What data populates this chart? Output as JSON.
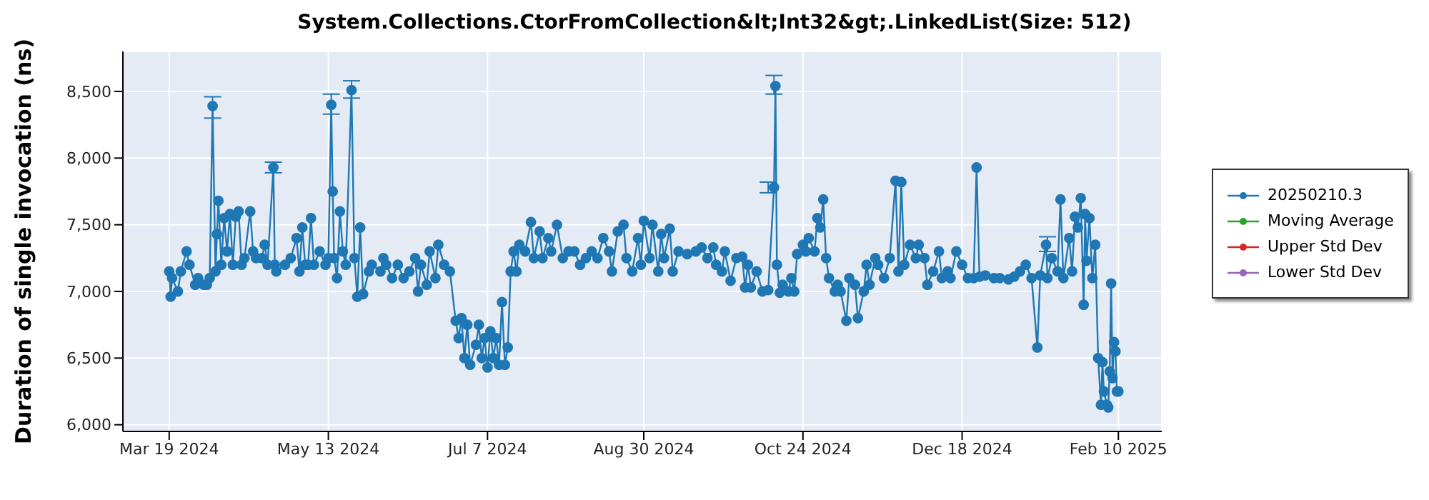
{
  "chart_data": {
    "type": "line",
    "title": "System.Collections.CtorFromCollection&lt;Int32&gt;.LinkedList(Size: 512)",
    "ylabel": "Duration of single invocation (ns)",
    "xlim": [
      "2024-03-03",
      "2025-02-25"
    ],
    "xticks": [
      {
        "value": "2024-03-19",
        "label": "Mar 19 2024"
      },
      {
        "value": "2024-05-13",
        "label": "May 13 2024"
      },
      {
        "value": "2024-07-07",
        "label": "Jul 7 2024"
      },
      {
        "value": "2024-08-30",
        "label": "Aug 30 2024"
      },
      {
        "value": "2024-10-24",
        "label": "Oct 24 2024"
      },
      {
        "value": "2024-12-18",
        "label": "Dec 18 2024"
      },
      {
        "value": "2025-02-10",
        "label": "Feb 10 2025"
      }
    ],
    "ylim": [
      5950,
      8800
    ],
    "yticks": [
      {
        "value": 6000,
        "label": "6,000"
      },
      {
        "value": 6500,
        "label": "6,500"
      },
      {
        "value": 7000,
        "label": "7,000"
      },
      {
        "value": 7500,
        "label": "7,500"
      },
      {
        "value": 8000,
        "label": "8,000"
      },
      {
        "value": 8500,
        "label": "8,500"
      }
    ],
    "grid": true,
    "legend": "right",
    "marker": "circle",
    "line_style": "solid",
    "x": [
      "2024-03-19",
      "2024-03-19T12:00",
      "2024-03-20",
      "2024-03-22",
      "2024-03-23",
      "2024-03-25",
      "2024-03-26",
      "2024-03-28",
      "2024-03-29",
      "2024-03-31",
      "2024-04-01",
      "2024-04-02",
      "2024-04-03",
      "2024-04-04",
      "2024-04-04T12:00",
      "2024-04-05",
      "2024-04-06",
      "2024-04-07",
      "2024-04-08",
      "2024-04-09",
      "2024-04-10",
      "2024-04-11",
      "2024-04-12",
      "2024-04-13",
      "2024-04-14",
      "2024-04-16",
      "2024-04-17",
      "2024-04-18",
      "2024-04-20",
      "2024-04-21",
      "2024-04-22",
      "2024-04-24",
      "2024-04-24T12:00",
      "2024-04-25",
      "2024-04-28",
      "2024-04-30",
      "2024-05-02",
      "2024-05-03",
      "2024-05-04",
      "2024-05-05",
      "2024-05-06",
      "2024-05-07",
      "2024-05-08",
      "2024-05-10",
      "2024-05-12",
      "2024-05-13",
      "2024-05-14",
      "2024-05-14T12:00",
      "2024-05-15",
      "2024-05-16",
      "2024-05-17",
      "2024-05-18",
      "2024-05-19",
      "2024-05-21",
      "2024-05-22",
      "2024-05-23",
      "2024-05-24",
      "2024-05-25",
      "2024-05-27",
      "2024-05-28",
      "2024-05-31",
      "2024-06-01",
      "2024-06-02",
      "2024-06-04",
      "2024-06-06",
      "2024-06-08",
      "2024-06-10",
      "2024-06-12",
      "2024-06-13",
      "2024-06-14",
      "2024-06-16",
      "2024-06-17",
      "2024-06-19",
      "2024-06-20",
      "2024-06-22",
      "2024-06-24",
      "2024-06-26",
      "2024-06-27",
      "2024-06-28",
      "2024-06-29",
      "2024-06-30",
      "2024-07-01",
      "2024-07-03",
      "2024-07-04",
      "2024-07-05",
      "2024-07-06",
      "2024-07-07",
      "2024-07-08",
      "2024-07-09",
      "2024-07-10",
      "2024-07-11",
      "2024-07-12",
      "2024-07-13",
      "2024-07-14",
      "2024-07-15",
      "2024-07-16",
      "2024-07-17",
      "2024-07-18",
      "2024-07-20",
      "2024-07-22",
      "2024-07-23",
      "2024-07-25",
      "2024-07-26",
      "2024-07-28",
      "2024-07-29",
      "2024-07-31",
      "2024-08-02",
      "2024-08-04",
      "2024-08-06",
      "2024-08-08",
      "2024-08-10",
      "2024-08-12",
      "2024-08-14",
      "2024-08-16",
      "2024-08-18",
      "2024-08-19",
      "2024-08-21",
      "2024-08-23",
      "2024-08-24",
      "2024-08-26",
      "2024-08-28",
      "2024-08-29",
      "2024-08-30",
      "2024-09-01",
      "2024-09-02",
      "2024-09-04",
      "2024-09-05",
      "2024-09-06",
      "2024-09-08",
      "2024-09-09",
      "2024-09-11",
      "2024-09-14",
      "2024-09-17",
      "2024-09-19",
      "2024-09-21",
      "2024-09-23",
      "2024-09-24",
      "2024-09-26",
      "2024-09-27",
      "2024-09-29",
      "2024-10-01",
      "2024-10-03",
      "2024-10-04",
      "2024-10-05",
      "2024-10-06",
      "2024-10-08",
      "2024-10-10",
      "2024-10-12",
      "2024-10-14",
      "2024-10-14T12:00",
      "2024-10-15",
      "2024-10-16",
      "2024-10-17",
      "2024-10-19",
      "2024-10-20",
      "2024-10-21",
      "2024-10-22",
      "2024-10-24",
      "2024-10-25",
      "2024-10-26",
      "2024-10-28",
      "2024-10-29",
      "2024-10-30",
      "2024-10-31",
      "2024-11-01",
      "2024-11-02",
      "2024-11-04",
      "2024-11-05",
      "2024-11-06",
      "2024-11-08",
      "2024-11-09",
      "2024-11-11",
      "2024-11-12",
      "2024-11-14",
      "2024-11-15",
      "2024-11-16",
      "2024-11-18",
      "2024-11-19",
      "2024-11-21",
      "2024-11-23",
      "2024-11-25",
      "2024-11-26",
      "2024-11-27",
      "2024-11-28",
      "2024-11-30",
      "2024-12-02",
      "2024-12-03",
      "2024-12-05",
      "2024-12-06",
      "2024-12-08",
      "2024-12-10",
      "2024-12-11",
      "2024-12-13",
      "2024-12-14",
      "2024-12-16",
      "2024-12-18",
      "2024-12-20",
      "2024-12-22",
      "2024-12-23",
      "2024-12-24",
      "2024-12-26",
      "2024-12-29",
      "2024-12-31",
      "2025-01-03",
      "2025-01-05",
      "2025-01-07",
      "2025-01-09",
      "2025-01-11",
      "2025-01-13",
      "2025-01-14",
      "2025-01-16",
      "2025-01-16T12:00",
      "2025-01-18",
      "2025-01-20",
      "2025-01-21",
      "2025-01-22",
      "2025-01-24",
      "2025-01-25",
      "2025-01-26",
      "2025-01-27",
      "2025-01-28",
      "2025-01-29",
      "2025-01-29T12:00",
      "2025-01-30",
      "2025-01-31",
      "2025-02-01",
      "2025-02-02",
      "2025-02-03",
      "2025-02-04",
      "2025-02-04T12:00",
      "2025-02-05",
      "2025-02-06",
      "2025-02-06T12:00",
      "2025-02-07",
      "2025-02-07T12:00",
      "2025-02-08",
      "2025-02-08T12:00",
      "2025-02-09",
      "2025-02-09T12:00",
      "2025-02-10"
    ],
    "series": [
      {
        "name": "20250210.3",
        "color": "#1f77b4",
        "values": [
          7150,
          6960,
          7100,
          7000,
          7150,
          7300,
          7200,
          7050,
          7100,
          7050,
          7050,
          7100,
          8390,
          7150,
          7430,
          7680,
          7200,
          7550,
          7300,
          7580,
          7200,
          7560,
          7600,
          7200,
          7250,
          7600,
          7300,
          7250,
          7250,
          7350,
          7200,
          7930,
          7200,
          7150,
          7200,
          7250,
          7400,
          7150,
          7480,
          7200,
          7200,
          7550,
          7200,
          7300,
          7200,
          7250,
          8400,
          7750,
          7250,
          7100,
          7600,
          7300,
          7200,
          8510,
          7250,
          6960,
          7480,
          6980,
          7150,
          7200,
          7150,
          7250,
          7200,
          7100,
          7200,
          7100,
          7150,
          7250,
          7000,
          7200,
          7050,
          7300,
          7100,
          7350,
          7200,
          7150,
          6780,
          6650,
          6800,
          6500,
          6750,
          6450,
          6600,
          6750,
          6500,
          6650,
          6430,
          6700,
          6500,
          6650,
          6450,
          6920,
          6450,
          6580,
          7150,
          7300,
          7150,
          7350,
          7300,
          7520,
          7250,
          7450,
          7250,
          7400,
          7300,
          7500,
          7250,
          7300,
          7300,
          7200,
          7250,
          7300,
          7250,
          7400,
          7300,
          7150,
          7450,
          7500,
          7250,
          7150,
          7400,
          7200,
          7530,
          7250,
          7500,
          7150,
          7430,
          7250,
          7470,
          7150,
          7300,
          7280,
          7300,
          7330,
          7250,
          7330,
          7200,
          7150,
          7300,
          7080,
          7250,
          7260,
          7030,
          7200,
          7030,
          7150,
          7000,
          7010,
          7780,
          8540,
          7200,
          6990,
          7050,
          7000,
          7100,
          7000,
          7280,
          7350,
          7300,
          7400,
          7300,
          7550,
          7480,
          7690,
          7250,
          7100,
          7000,
          7050,
          7000,
          6780,
          7100,
          7050,
          6800,
          7000,
          7200,
          7050,
          7250,
          7200,
          7100,
          7250,
          7830,
          7150,
          7820,
          7200,
          7350,
          7250,
          7350,
          7250,
          7050,
          7150,
          7300,
          7100,
          7150,
          7100,
          7300,
          7200,
          7100,
          7100,
          7930,
          7110,
          7120,
          7100,
          7100,
          7090,
          7110,
          7150,
          7200,
          7100,
          6580,
          7120,
          7350,
          7100,
          7250,
          7150,
          7690,
          7100,
          7400,
          7150,
          7560,
          7480,
          7700,
          6900,
          7580,
          7230,
          7550,
          7100,
          7350,
          6500,
          6150,
          6470,
          6250,
          6150,
          6130,
          6400,
          7060,
          6350,
          6620,
          6550,
          6250,
          6250
        ],
        "errors": [
          null,
          null,
          null,
          null,
          null,
          null,
          null,
          null,
          null,
          null,
          null,
          null,
          [
            8300,
            8460
          ],
          null,
          null,
          null,
          null,
          null,
          null,
          null,
          null,
          null,
          null,
          null,
          null,
          null,
          null,
          null,
          null,
          null,
          null,
          [
            7890,
            7970
          ],
          null,
          null,
          null,
          null,
          null,
          null,
          null,
          null,
          null,
          null,
          null,
          null,
          null,
          null,
          [
            8330,
            8480
          ],
          null,
          null,
          null,
          null,
          null,
          null,
          [
            8450,
            8580
          ],
          null,
          null,
          null,
          null,
          null,
          null,
          null,
          null,
          null,
          null,
          null,
          null,
          null,
          null,
          null,
          null,
          null,
          null,
          null,
          null,
          null,
          null,
          null,
          null,
          null,
          null,
          null,
          null,
          null,
          null,
          null,
          null,
          null,
          null,
          null,
          null,
          null,
          null,
          null,
          null,
          null,
          null,
          null,
          null,
          null,
          null,
          null,
          null,
          null,
          null,
          null,
          null,
          null,
          null,
          null,
          null,
          null,
          null,
          null,
          null,
          null,
          null,
          null,
          null,
          null,
          null,
          null,
          null,
          null,
          null,
          null,
          null,
          null,
          null,
          null,
          null,
          null,
          null,
          null,
          null,
          null,
          null,
          null,
          null,
          null,
          null,
          null,
          null,
          null,
          null,
          null,
          null,
          null,
          [
            7740,
            7820
          ],
          [
            8480,
            8620
          ],
          null,
          null,
          null,
          null,
          null,
          null,
          null,
          null,
          null,
          null,
          null,
          null,
          null,
          null,
          null,
          null,
          null,
          null,
          null,
          null,
          null,
          null,
          null,
          null,
          null,
          null,
          null,
          null,
          null,
          null,
          null,
          null,
          null,
          null,
          null,
          null,
          null,
          null,
          null,
          null,
          null,
          null,
          null,
          null,
          null,
          null,
          null,
          null,
          null,
          null,
          null,
          null,
          null,
          null,
          null,
          null,
          null,
          null,
          null,
          null,
          null,
          null,
          [
            7300,
            7410
          ],
          null,
          null,
          null,
          null,
          null,
          null,
          null,
          null,
          null,
          null,
          null,
          null,
          null,
          null,
          null,
          null,
          null,
          null,
          null,
          null,
          null,
          null,
          null,
          null,
          null,
          null,
          null,
          null
        ]
      },
      {
        "name": "Moving Average",
        "color": "#2ca02c",
        "values": [
          null,
          null,
          null,
          null,
          null,
          null,
          null,
          null,
          null,
          null,
          null,
          null,
          null,
          null,
          null,
          null,
          null,
          null,
          null,
          null,
          null,
          null,
          null,
          null,
          null,
          null,
          null,
          null,
          null,
          null,
          null,
          null,
          null,
          null,
          null,
          null,
          null,
          null,
          null,
          null,
          null,
          null,
          null,
          null,
          null,
          null,
          null,
          null,
          null,
          null,
          null,
          null,
          null,
          null,
          null,
          null,
          null,
          null,
          null,
          null,
          null,
          null,
          null,
          null,
          null,
          null,
          null,
          null,
          null,
          null,
          null,
          null,
          null,
          null,
          null,
          null,
          null,
          null,
          null,
          null,
          null,
          null,
          null,
          null,
          null,
          null,
          null,
          null,
          null,
          null,
          null,
          null,
          null,
          null,
          null,
          null,
          null,
          null,
          null,
          null,
          null,
          null,
          null,
          null,
          null,
          null,
          null,
          null,
          null,
          null,
          null,
          null,
          null,
          null,
          null,
          null,
          null,
          null,
          null,
          null,
          null,
          null,
          null,
          null,
          null,
          null,
          null,
          null,
          null,
          null,
          null,
          null,
          null,
          null,
          null,
          null,
          null,
          null,
          null,
          null,
          null,
          null,
          null,
          null,
          null,
          null,
          null,
          null,
          null,
          null,
          null,
          null,
          null,
          null,
          null,
          null,
          null,
          null,
          null,
          null,
          null,
          null,
          null,
          null,
          null,
          null,
          null,
          null,
          null,
          null,
          null,
          null,
          null,
          null,
          null,
          null,
          null,
          null,
          null,
          null,
          null,
          null,
          null,
          null,
          null,
          null,
          null,
          null,
          null,
          null,
          null,
          null,
          null,
          null,
          null,
          null,
          null,
          null,
          null,
          null,
          null,
          null,
          null,
          null,
          null,
          null,
          null,
          null,
          null,
          null,
          null,
          null,
          null,
          null,
          null,
          null,
          null,
          null,
          null,
          null,
          null,
          null,
          null,
          null,
          null,
          null,
          null,
          null,
          null,
          null,
          null,
          null,
          null,
          null,
          null,
          null,
          null,
          null,
          null,
          null
        ]
      },
      {
        "name": "Upper Std Dev",
        "color": "#d62728",
        "values": [
          null,
          null,
          null,
          null,
          null,
          null,
          null,
          null,
          null,
          null,
          null,
          null,
          null,
          null,
          null,
          null,
          null,
          null,
          null,
          null,
          null,
          null,
          null,
          null,
          null,
          null,
          null,
          null,
          null,
          null,
          null,
          null,
          null,
          null,
          null,
          null,
          null,
          null,
          null,
          null,
          null,
          null,
          null,
          null,
          null,
          null,
          null,
          null,
          null,
          null,
          null,
          null,
          null,
          null,
          null,
          null,
          null,
          null,
          null,
          null,
          null,
          null,
          null,
          null,
          null,
          null,
          null,
          null,
          null,
          null,
          null,
          null,
          null,
          null,
          null,
          null,
          null,
          null,
          null,
          null,
          null,
          null,
          null,
          null,
          null,
          null,
          null,
          null,
          null,
          null,
          null,
          null,
          null,
          null,
          null,
          null,
          null,
          null,
          null,
          null,
          null,
          null,
          null,
          null,
          null,
          null,
          null,
          null,
          null,
          null,
          null,
          null,
          null,
          null,
          null,
          null,
          null,
          null,
          null,
          null,
          null,
          null,
          null,
          null,
          null,
          null,
          null,
          null,
          null,
          null,
          null,
          null,
          null,
          null,
          null,
          null,
          null,
          null,
          null,
          null,
          null,
          null,
          null,
          null,
          null,
          null,
          null,
          null,
          null,
          null,
          null,
          null,
          null,
          null,
          null,
          null,
          null,
          null,
          null,
          null,
          null,
          null,
          null,
          null,
          null,
          null,
          null,
          null,
          null,
          null,
          null,
          null,
          null,
          null,
          null,
          null,
          null,
          null,
          null,
          null,
          null,
          null,
          null,
          null,
          null,
          null,
          null,
          null,
          null,
          null,
          null,
          null,
          null,
          null,
          null,
          null,
          null,
          null,
          null,
          null,
          null,
          null,
          null,
          null,
          null,
          null,
          null,
          null,
          null,
          null,
          null,
          null,
          null,
          null,
          null,
          null,
          null,
          null,
          null,
          null,
          null,
          null,
          null,
          null,
          null,
          null,
          null,
          null,
          null,
          null,
          null,
          null,
          null,
          null,
          null,
          null,
          null,
          null,
          null,
          null
        ]
      },
      {
        "name": "Lower Std Dev",
        "color": "#9467bd",
        "values": [
          null,
          null,
          null,
          null,
          null,
          null,
          null,
          null,
          null,
          null,
          null,
          null,
          null,
          null,
          null,
          null,
          null,
          null,
          null,
          null,
          null,
          null,
          null,
          null,
          null,
          null,
          null,
          null,
          null,
          null,
          null,
          null,
          null,
          null,
          null,
          null,
          null,
          null,
          null,
          null,
          null,
          null,
          null,
          null,
          null,
          null,
          null,
          null,
          null,
          null,
          null,
          null,
          null,
          null,
          null,
          null,
          null,
          null,
          null,
          null,
          null,
          null,
          null,
          null,
          null,
          null,
          null,
          null,
          null,
          null,
          null,
          null,
          null,
          null,
          null,
          null,
          null,
          null,
          null,
          null,
          null,
          null,
          null,
          null,
          null,
          null,
          null,
          null,
          null,
          null,
          null,
          null,
          null,
          null,
          null,
          null,
          null,
          null,
          null,
          null,
          null,
          null,
          null,
          null,
          null,
          null,
          null,
          null,
          null,
          null,
          null,
          null,
          null,
          null,
          null,
          null,
          null,
          null,
          null,
          null,
          null,
          null,
          null,
          null,
          null,
          null,
          null,
          null,
          null,
          null,
          null,
          null,
          null,
          null,
          null,
          null,
          null,
          null,
          null,
          null,
          null,
          null,
          null,
          null,
          null,
          null,
          null,
          null,
          null,
          null,
          null,
          null,
          null,
          null,
          null,
          null,
          null,
          null,
          null,
          null,
          null,
          null,
          null,
          null,
          null,
          null,
          null,
          null,
          null,
          null,
          null,
          null,
          null,
          null,
          null,
          null,
          null,
          null,
          null,
          null,
          null,
          null,
          null,
          null,
          null,
          null,
          null,
          null,
          null,
          null,
          null,
          null,
          null,
          null,
          null,
          null,
          null,
          null,
          null,
          null,
          null,
          null,
          null,
          null,
          null,
          null,
          null,
          null,
          null,
          null,
          null,
          null,
          null,
          null,
          null,
          null,
          null,
          null,
          null,
          null,
          null,
          null,
          null,
          null,
          null,
          null,
          null,
          null,
          null,
          null,
          null,
          null,
          null,
          null,
          null,
          null,
          null,
          null,
          null,
          null
        ]
      }
    ]
  }
}
